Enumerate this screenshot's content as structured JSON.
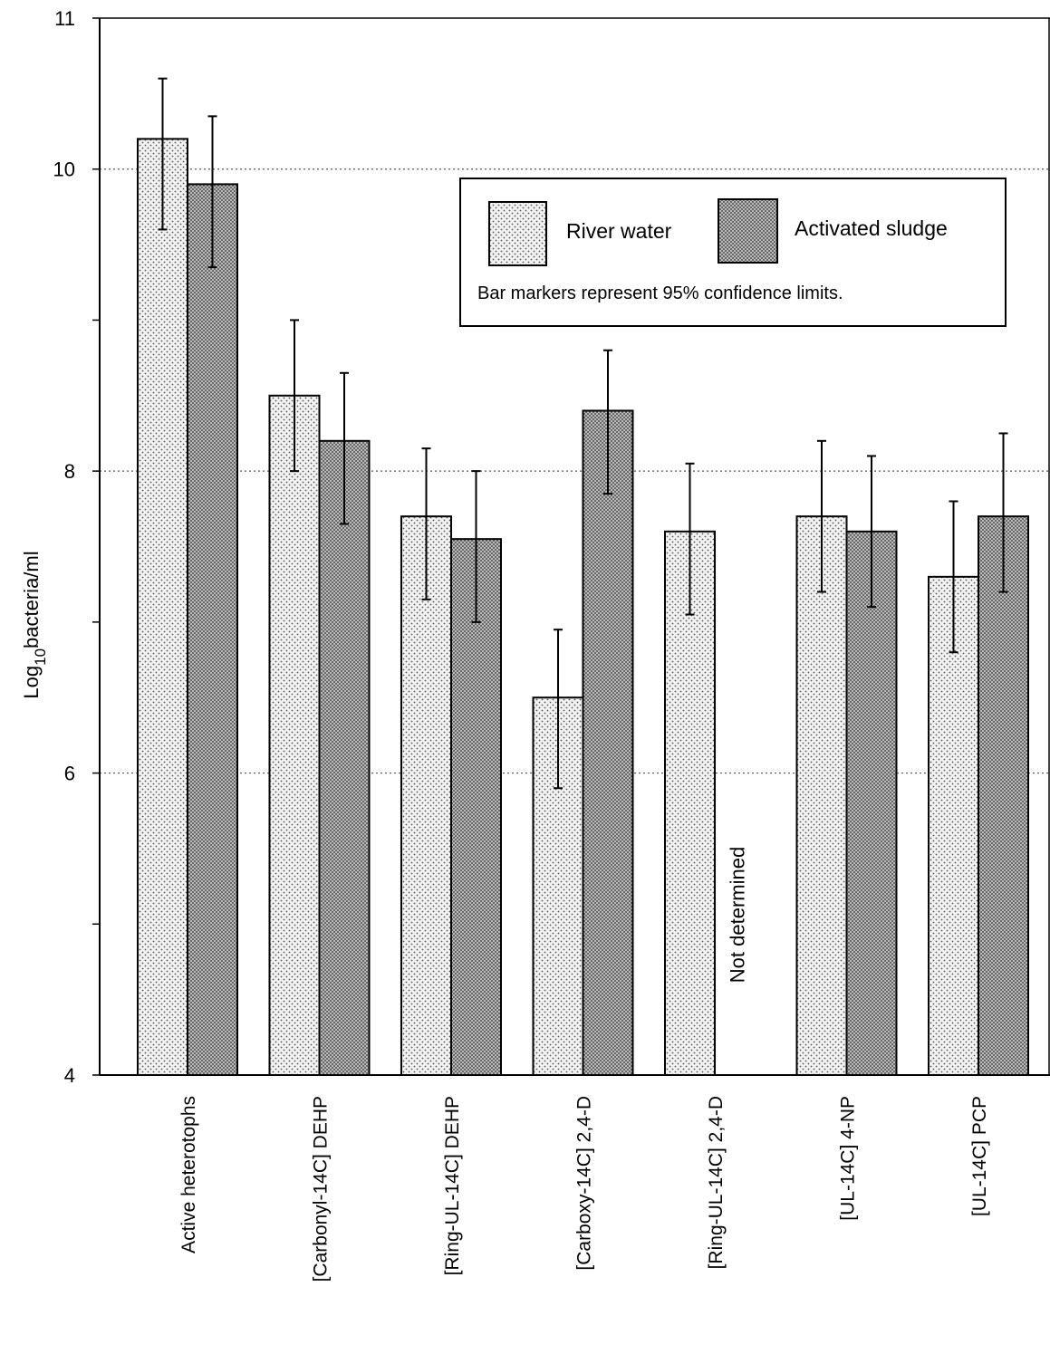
{
  "chart_data": {
    "type": "bar",
    "ylabel_main": "Log",
    "ylabel_sub": "10",
    "ylabel_rest": "bacteria/ml",
    "ylim": [
      4,
      11
    ],
    "yticks": [
      4,
      6,
      8,
      10,
      11
    ],
    "grid": "dotted horizontal at 6, 8, 10",
    "categories": [
      "Active heterotophs",
      "[Carbonyl-14C] DEHP",
      "[Ring-UL-14C] DEHP",
      "[Carboxy-14C] 2,4-D",
      "[Ring-UL-14C] 2,4-D",
      "[UL-14C] 4-NP",
      "[UL-14C] PCP"
    ],
    "series": [
      {
        "name": "River water",
        "color": "#e6e6e6",
        "values": [
          10.2,
          8.5,
          7.7,
          6.5,
          7.6,
          7.7,
          7.3
        ],
        "err_low": [
          9.6,
          8.0,
          7.15,
          5.9,
          7.05,
          7.2,
          6.8
        ],
        "err_high": [
          10.6,
          9.0,
          8.15,
          6.95,
          8.05,
          8.2,
          7.8
        ]
      },
      {
        "name": "Activated sludge",
        "color": "#9c9c9c",
        "values": [
          9.9,
          8.2,
          7.55,
          8.4,
          null,
          7.6,
          7.7
        ],
        "err_low": [
          9.35,
          7.65,
          7.0,
          7.85,
          null,
          7.1,
          7.2
        ],
        "err_high": [
          10.35,
          8.65,
          8.0,
          8.8,
          null,
          8.1,
          8.25
        ]
      }
    ],
    "annotation": "Not determined",
    "legend": {
      "placement": "top-right",
      "note": "Bar markers represent 95% confidence limits."
    }
  }
}
